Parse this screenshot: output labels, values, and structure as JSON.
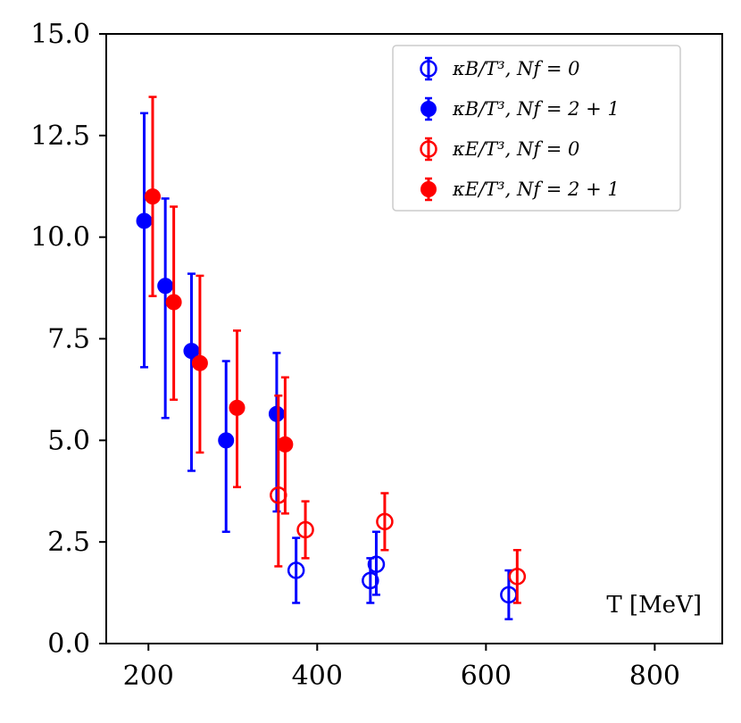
{
  "chart_data": {
    "type": "scatter",
    "title": "",
    "xlabel": "T [MeV]",
    "ylabel": "",
    "xlim": [
      150,
      880
    ],
    "ylim": [
      0,
      15
    ],
    "xticks": [
      200,
      400,
      600,
      800
    ],
    "xtick_labels": [
      "200",
      "400",
      "600",
      "800"
    ],
    "yticks": [
      0,
      2.5,
      5,
      7.5,
      10,
      12.5,
      15
    ],
    "ytick_labels": [
      "0.0",
      "2.5",
      "5.0",
      "7.5",
      "10.0",
      "12.5",
      "15.0"
    ],
    "grid": false,
    "legend_position": "top-right",
    "series": [
      {
        "name": "κB/T³, Nf = 0",
        "legend_label": "κB/T³,  Nf = 0",
        "color": "#0000ff",
        "marker": "open-circle",
        "points": [
          {
            "x": 375,
            "y": 1.8,
            "lo": 1.0,
            "hi": 2.6
          },
          {
            "x": 463,
            "y": 1.55,
            "lo": 1.0,
            "hi": 2.1
          },
          {
            "x": 470,
            "y": 1.95,
            "lo": 1.2,
            "hi": 2.75
          },
          {
            "x": 627,
            "y": 1.2,
            "lo": 0.6,
            "hi": 1.8
          }
        ]
      },
      {
        "name": "κB/T³, Nf = 2+1",
        "legend_label": "κB/T³,  Nf = 2 + 1",
        "color": "#0000ff",
        "marker": "filled-circle",
        "points": [
          {
            "x": 195,
            "y": 10.4,
            "lo": 6.8,
            "hi": 13.05
          },
          {
            "x": 220,
            "y": 8.8,
            "lo": 5.55,
            "hi": 10.95
          },
          {
            "x": 251,
            "y": 7.2,
            "lo": 4.25,
            "hi": 9.1
          },
          {
            "x": 292,
            "y": 5.0,
            "lo": 2.75,
            "hi": 6.95
          },
          {
            "x": 352,
            "y": 5.65,
            "lo": 3.25,
            "hi": 7.15
          }
        ]
      },
      {
        "name": "κE/T³, Nf = 0",
        "legend_label": "κE/T³,  Nf = 0",
        "color": "#ff0000",
        "marker": "open-circle",
        "points": [
          {
            "x": 354,
            "y": 3.65,
            "lo": 1.9,
            "hi": 6.1
          },
          {
            "x": 386,
            "y": 2.8,
            "lo": 2.1,
            "hi": 3.5
          },
          {
            "x": 480,
            "y": 3.0,
            "lo": 2.3,
            "hi": 3.7
          },
          {
            "x": 637,
            "y": 1.65,
            "lo": 1.0,
            "hi": 2.3
          }
        ]
      },
      {
        "name": "κE/T³, Nf = 2+1",
        "legend_label": "κE/T³,  Nf = 2 + 1",
        "color": "#ff0000",
        "marker": "filled-circle",
        "points": [
          {
            "x": 205,
            "y": 11.0,
            "lo": 8.55,
            "hi": 13.45
          },
          {
            "x": 230,
            "y": 8.4,
            "lo": 6.0,
            "hi": 10.75
          },
          {
            "x": 261,
            "y": 6.9,
            "lo": 4.7,
            "hi": 9.05
          },
          {
            "x": 305,
            "y": 5.8,
            "lo": 3.85,
            "hi": 7.7
          },
          {
            "x": 362,
            "y": 4.9,
            "lo": 3.2,
            "hi": 6.55
          }
        ]
      }
    ]
  }
}
